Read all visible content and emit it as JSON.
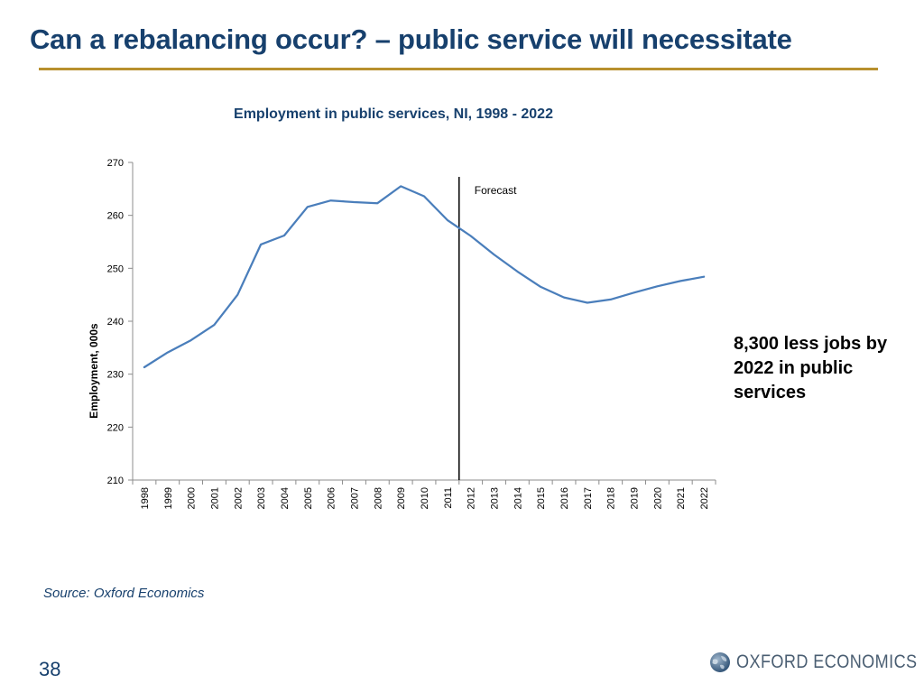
{
  "slide": {
    "title": "Can a rebalancing occur? – public service will necessitate",
    "callout": "8,300 less jobs by 2022 in public services",
    "source": "Source: Oxford Economics",
    "page_number": "38",
    "logo_text": "OXFORD ECONOMICS"
  },
  "colors": {
    "title": "#17406d",
    "rule": "#b8902e",
    "series": "#4a7ebb",
    "forecast_line": "#000000"
  },
  "chart_data": {
    "type": "line",
    "title": "Employment in public services, NI, 1998 - 2022",
    "xlabel": "",
    "ylabel": "Employment, 000s",
    "ylim": [
      210,
      270
    ],
    "yticks": [
      210,
      220,
      230,
      240,
      250,
      260,
      270
    ],
    "grid": false,
    "legend": "none",
    "x": [
      "1998",
      "1999",
      "2000",
      "2001",
      "2002",
      "2003",
      "2004",
      "2005",
      "2006",
      "2007",
      "2008",
      "2009",
      "2010",
      "2011",
      "2012",
      "2013",
      "2014",
      "2015",
      "2016",
      "2017",
      "2018",
      "2019",
      "2020",
      "2021",
      "2022"
    ],
    "series": [
      {
        "values": [
          231.3,
          234.1,
          236.4,
          239.3,
          245.0,
          254.5,
          256.2,
          261.6,
          262.8,
          262.5,
          262.3,
          265.5,
          263.6,
          259.1,
          256.1,
          252.6,
          249.4,
          246.5,
          244.5,
          243.5,
          244.1,
          245.4,
          246.6,
          247.6,
          248.4
        ]
      }
    ],
    "annotations": [
      {
        "text": "Forecast",
        "x_between": [
          "2011",
          "2012"
        ]
      }
    ]
  }
}
